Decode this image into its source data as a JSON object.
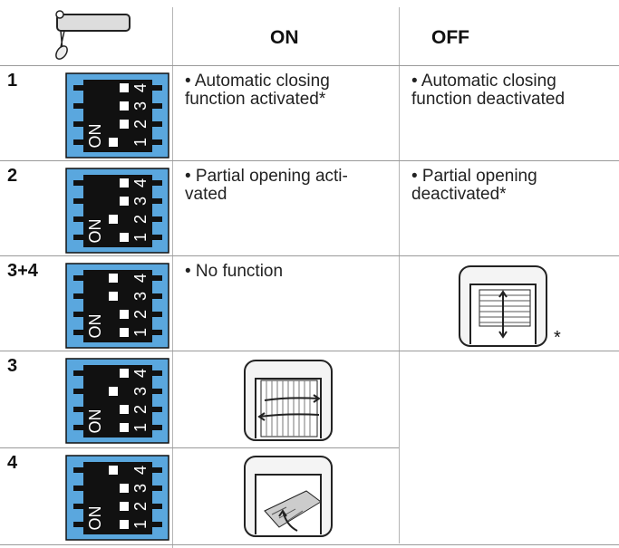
{
  "header": {
    "on": "ON",
    "off": "OFF"
  },
  "switch_labels": {
    "on": "ON",
    "numbers": [
      "1",
      "2",
      "3",
      "4"
    ]
  },
  "rows": [
    {
      "label": "1",
      "on": [
        "• Automatic closing",
        "function activated*"
      ],
      "off": [
        "• Automatic closing",
        "function deactivated"
      ]
    },
    {
      "label": "2",
      "on": [
        "• Partial opening acti-",
        "vated"
      ],
      "off": [
        "• Partial opening",
        "deactivated*"
      ]
    },
    {
      "label": "3+4",
      "on": [
        "• No function"
      ],
      "off_note": "*"
    },
    {
      "label": "3"
    },
    {
      "label": "4"
    }
  ]
}
